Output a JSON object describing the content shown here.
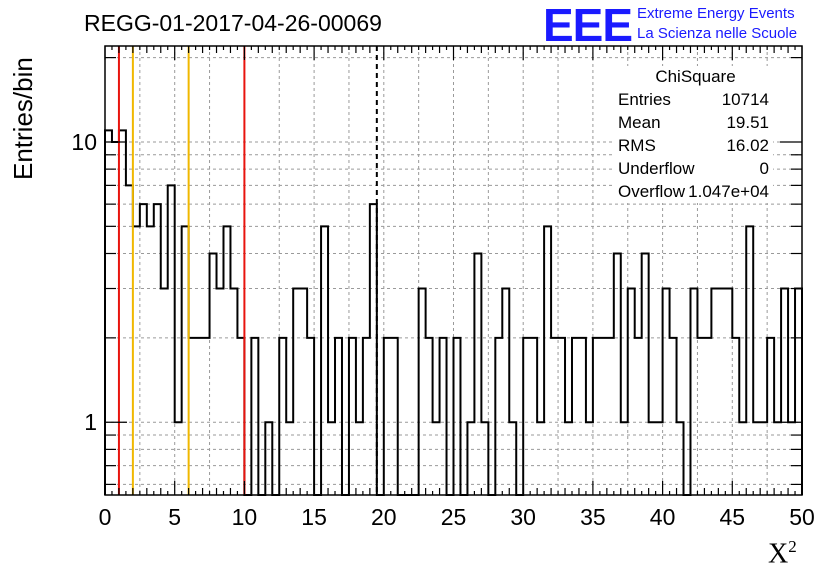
{
  "header": {
    "title": "REGG-01-2017-04-26-00069",
    "logo_text": "EEE",
    "logo_line1": "Extreme Energy Events",
    "logo_line2": "La Scienza nelle Scuole"
  },
  "stats_box": {
    "title": "ChiSquare",
    "rows": [
      {
        "label": "Entries",
        "value": "10714"
      },
      {
        "label": "Mean",
        "value": "19.51"
      },
      {
        "label": "RMS",
        "value": "16.02"
      },
      {
        "label": "Underflow",
        "value": "0"
      },
      {
        "label": "Overflow",
        "value": "1.047e+04"
      }
    ]
  },
  "colors": {
    "histogram": "#000000",
    "red_line": "#e8140e",
    "yellow_line": "#f0b800",
    "mean_line": "#000000",
    "grid": "#9a9a9a",
    "logo": "#1a1aff"
  },
  "chart_data": {
    "type": "histogram",
    "title": "REGG-01-2017-04-26-00069",
    "xlabel": "X",
    "xlabel_superscript": "2",
    "ylabel": "Entries/bin",
    "xlim": [
      0,
      50
    ],
    "ylim": [
      0.55,
      22
    ],
    "log_y": true,
    "grid": true,
    "bin_width": 0.5,
    "x_ticks": [
      "0",
      "5",
      "10",
      "15",
      "20",
      "25",
      "30",
      "35",
      "40",
      "45",
      "50"
    ],
    "y_ticks": [
      "1",
      "10"
    ],
    "values": [
      11,
      10,
      11,
      7,
      5,
      6,
      5,
      6,
      3,
      7,
      1,
      5,
      2,
      2,
      2,
      4,
      3,
      5,
      3,
      2,
      0,
      2,
      0,
      1,
      0,
      2,
      1,
      3,
      3,
      2,
      0,
      5,
      1,
      2,
      0,
      2,
      1,
      2,
      6,
      0,
      2,
      2,
      0,
      0,
      0,
      3,
      2,
      1,
      2,
      0,
      2,
      0,
      1,
      4,
      1,
      0,
      2,
      3,
      1,
      0,
      2,
      2,
      1,
      5,
      2,
      2,
      1,
      2,
      2,
      1,
      2,
      2,
      2,
      4,
      1,
      3,
      2,
      4,
      1,
      1,
      3,
      2,
      1,
      0,
      3,
      2,
      2,
      3,
      3,
      3,
      2,
      1,
      5,
      1,
      1,
      2,
      1,
      3,
      1,
      3
    ],
    "vertical_lines": [
      {
        "x": 1,
        "color": "red"
      },
      {
        "x": 10,
        "color": "red"
      },
      {
        "x": 2,
        "color": "yellow"
      },
      {
        "x": 6,
        "color": "yellow"
      },
      {
        "x": 19.5,
        "color": "black",
        "style": "dashed"
      }
    ]
  }
}
